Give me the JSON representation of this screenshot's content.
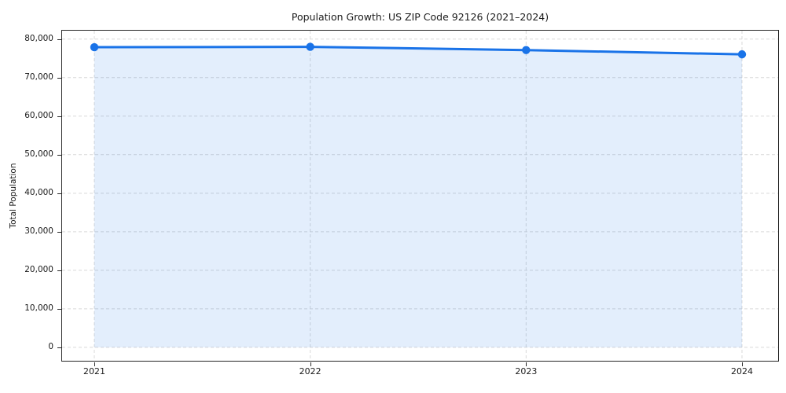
{
  "chart_data": {
    "type": "line",
    "title": "Population Growth: US ZIP Code 92126 (2021–2024)",
    "xlabel": "",
    "ylabel": "Total Population",
    "categories": [
      "2021",
      "2022",
      "2023",
      "2024"
    ],
    "series": [
      {
        "name": "Total Population",
        "values": [
          77900,
          78000,
          77150,
          76050
        ]
      }
    ],
    "yticks": [
      {
        "value": 0,
        "label": "0"
      },
      {
        "value": 10000,
        "label": "10,000"
      },
      {
        "value": 20000,
        "label": "20,000"
      },
      {
        "value": 30000,
        "label": "30,000"
      },
      {
        "value": 40000,
        "label": "40,000"
      },
      {
        "value": 50000,
        "label": "50,000"
      },
      {
        "value": 60000,
        "label": "60,000"
      },
      {
        "value": 70000,
        "label": "70,000"
      },
      {
        "value": 80000,
        "label": "80,000"
      }
    ],
    "ylim": [
      -3700,
      82400
    ],
    "grid": true,
    "legend": false,
    "marker": "circle",
    "fill_to_zero": true,
    "colors": {
      "line": "#1a73e8",
      "fill": "rgba(26,115,232,0.12)",
      "grid": "#d9d9d9",
      "spine": "#262626"
    }
  }
}
